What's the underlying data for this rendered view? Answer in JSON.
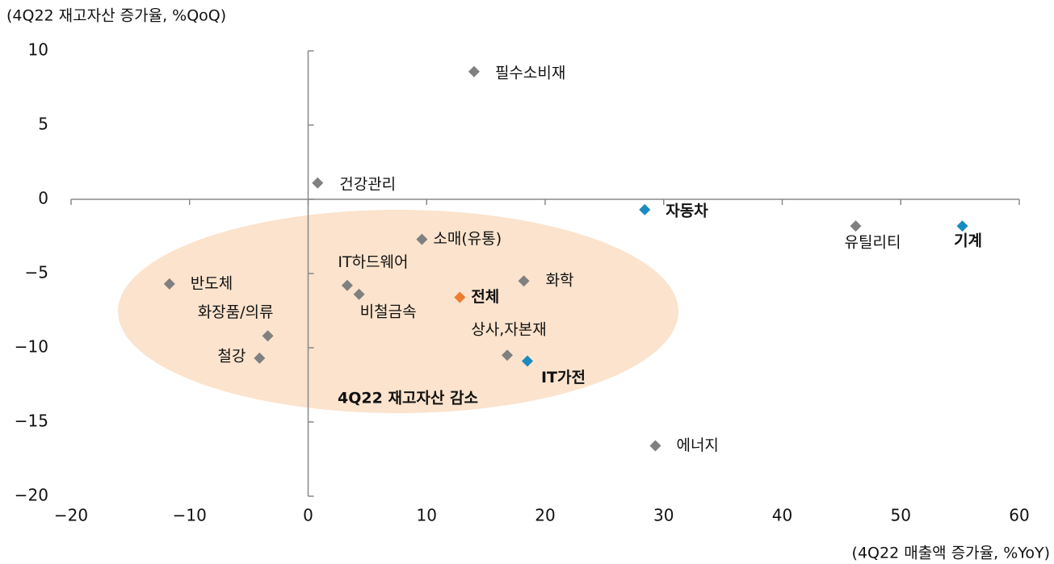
{
  "chart_data": {
    "type": "scatter",
    "y_label": "(4Q22 재고자산 증가율, %QoQ)",
    "x_label": "(4Q22 매출액 증가율, %YoY)",
    "annotation": "4Q22 재고자산 감소",
    "xlim": [
      -20,
      60
    ],
    "xticks": [
      {
        "value": -20,
        "label": "−20"
      },
      {
        "value": -10,
        "label": "−10"
      },
      0,
      10,
      20,
      30,
      40,
      50,
      60
    ],
    "ylim": [
      -20,
      10
    ],
    "yticks": [
      {
        "value": -20,
        "label": "−20"
      },
      {
        "value": -15,
        "label": "−15"
      },
      {
        "value": -10,
        "label": "−10"
      },
      {
        "value": -5,
        "label": "−5"
      },
      0,
      5,
      10
    ],
    "points": [
      {
        "label": "필수소비재",
        "x": 14.0,
        "y": 8.6,
        "color": "#808080",
        "highlight": false
      },
      {
        "label": "건강관리",
        "x": 0.8,
        "y": 1.1,
        "color": "#808080",
        "highlight": false
      },
      {
        "label": "자동차",
        "x": 28.4,
        "y": -0.7,
        "color": "#1a8bbf",
        "highlight": true
      },
      {
        "label": "유틸리티",
        "x": 46.2,
        "y": -1.8,
        "color": "#808080",
        "highlight": false
      },
      {
        "label": "기계",
        "x": 55.2,
        "y": -1.8,
        "color": "#1a8bbf",
        "highlight": true
      },
      {
        "label": "소매(유통)",
        "x": 9.6,
        "y": -2.7,
        "color": "#808080",
        "highlight": false
      },
      {
        "label": "반도체",
        "x": -11.7,
        "y": -5.7,
        "color": "#808080",
        "highlight": false
      },
      {
        "label": "IT하드웨어",
        "x": 3.3,
        "y": -5.8,
        "color": "#808080",
        "highlight": false
      },
      {
        "label": "비철금속",
        "x": 4.3,
        "y": -6.4,
        "color": "#808080",
        "highlight": false
      },
      {
        "label": "전체",
        "x": 12.8,
        "y": -6.6,
        "color": "#ed7d31",
        "highlight": true
      },
      {
        "label": "화학",
        "x": 18.2,
        "y": -5.5,
        "color": "#808080",
        "highlight": false
      },
      {
        "label": "화장품/의류",
        "x": -3.4,
        "y": -9.2,
        "color": "#808080",
        "highlight": false
      },
      {
        "label": "철강",
        "x": -4.1,
        "y": -10.7,
        "color": "#808080",
        "highlight": false
      },
      {
        "label": "상사,자본재",
        "x": 16.8,
        "y": -10.5,
        "color": "#808080",
        "highlight": false
      },
      {
        "label": "IT가전",
        "x": 18.5,
        "y": -10.9,
        "color": "#1a8bbf",
        "highlight": true
      },
      {
        "label": "에너지",
        "x": 29.3,
        "y": -16.6,
        "color": "#808080",
        "highlight": false
      }
    ]
  }
}
